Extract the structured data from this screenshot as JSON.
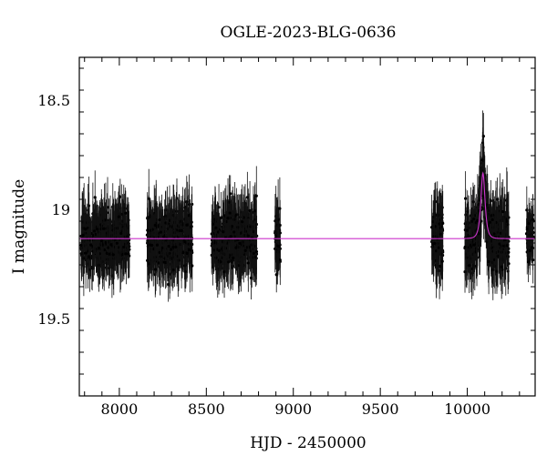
{
  "chart_data": {
    "type": "scatter",
    "title": "OGLE-2023-BLG-0636",
    "xlabel": "HJD - 2450000",
    "ylabel": "I magnitude",
    "xlim": [
      7770,
      10390
    ],
    "ylim": [
      19.85,
      18.3
    ],
    "y_inverted": true,
    "x_ticks": [
      8000,
      8500,
      9000,
      9500,
      10000
    ],
    "y_ticks": [
      18.5,
      19,
      19.5
    ],
    "y_tick_labels": [
      "18.5",
      "19",
      "19.5"
    ],
    "grid": false,
    "legend": "none",
    "series": [
      {
        "kind": "photometry",
        "color": "#000000",
        "seasons": [
          {
            "x_start": 7780,
            "x_end": 8060,
            "mean_mag": 19.13,
            "scatter": 0.09,
            "err": 0.11
          },
          {
            "x_start": 8160,
            "x_end": 8420,
            "mean_mag": 19.13,
            "scatter": 0.09,
            "err": 0.11
          },
          {
            "x_start": 8530,
            "x_end": 8790,
            "mean_mag": 19.13,
            "scatter": 0.09,
            "err": 0.11
          },
          {
            "x_start": 8895,
            "x_end": 8925,
            "mean_mag": 19.14,
            "scatter": 0.09,
            "err": 0.11
          },
          {
            "x_start": 9795,
            "x_end": 9860,
            "mean_mag": 19.14,
            "scatter": 0.1,
            "err": 0.12
          },
          {
            "x_start": 9985,
            "x_end": 10240,
            "mean_mag": 19.12,
            "scatter": 0.1,
            "err": 0.12
          },
          {
            "x_start": 10340,
            "x_end": 10380,
            "mean_mag": 19.1,
            "scatter": 0.07,
            "err": 0.09
          }
        ]
      },
      {
        "kind": "model",
        "color": "#cc33cc",
        "baseline": 19.13,
        "peak_x": 10090,
        "peak_mag": 18.83,
        "tE": 14
      }
    ]
  }
}
